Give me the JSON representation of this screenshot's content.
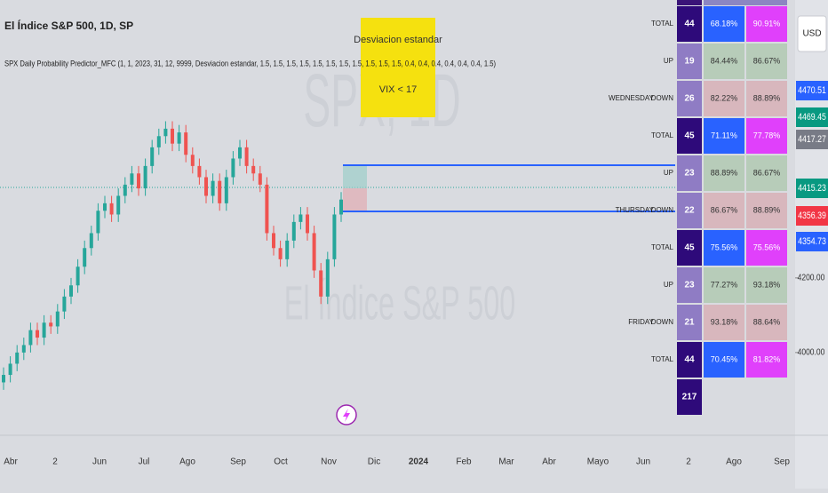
{
  "header": {
    "title": "El Índice S&P 500, 1D, SP",
    "indicator": "SPX Daily Probability Predictor_MFC (1, 1, 2023, 31, 12, 9999, Desviacion estandar, 1.5, 1.5, 1.5, 1.5, 1.5, 1.5, 1.5, 1.5, 1.5, 1.5, 1.5, 0.4, 0.4, 0.4, 0.4, 0.4, 0.4, 1.5)"
  },
  "annotation": {
    "lines": [
      "Desviacion estandar",
      "VIX < 17"
    ]
  },
  "watermark": {
    "symbol": "SPX, 1D",
    "name": "El Índice S&P 500"
  },
  "currency": "USD",
  "candles": {
    "up_color": "#26a69a",
    "down_color": "#ef5350",
    "ylim": [
      3802,
      4945
    ],
    "open": [
      3920,
      3940,
      3970,
      4000,
      4020,
      4060,
      4040,
      4080,
      4070,
      4110,
      4150,
      4180,
      4230,
      4280,
      4320,
      4380,
      4400,
      4370,
      4420,
      4450,
      4480,
      4440,
      4500,
      4550,
      4580,
      4600,
      4560,
      4590,
      4530,
      4500,
      4470,
      4420,
      4460,
      4400,
      4470,
      4520,
      4550,
      4500,
      4480,
      4450,
      4320,
      4280,
      4250,
      4300,
      4350,
      4370,
      4320,
      4220,
      4150,
      4250,
      4370
    ],
    "high": [
      3960,
      3990,
      4020,
      4040,
      4080,
      4080,
      4100,
      4100,
      4130,
      4170,
      4200,
      4250,
      4300,
      4340,
      4400,
      4420,
      4420,
      4440,
      4470,
      4500,
      4500,
      4520,
      4570,
      4600,
      4620,
      4620,
      4610,
      4610,
      4550,
      4520,
      4490,
      4480,
      4480,
      4490,
      4540,
      4570,
      4570,
      4520,
      4500,
      4470,
      4340,
      4300,
      4320,
      4370,
      4390,
      4390,
      4340,
      4240,
      4270,
      4390,
      4430
    ],
    "low": [
      3900,
      3920,
      3950,
      3980,
      4000,
      4020,
      4020,
      4050,
      4050,
      4090,
      4130,
      4160,
      4210,
      4260,
      4300,
      4360,
      4350,
      4350,
      4400,
      4430,
      4420,
      4420,
      4480,
      4530,
      4560,
      4540,
      4540,
      4510,
      4480,
      4450,
      4400,
      4400,
      4380,
      4380,
      4450,
      4500,
      4480,
      4460,
      4430,
      4300,
      4260,
      4230,
      4230,
      4280,
      4330,
      4300,
      4200,
      4130,
      4130,
      4230,
      4350
    ],
    "close": [
      3940,
      3970,
      4000,
      4020,
      4060,
      4040,
      4080,
      4070,
      4110,
      4150,
      4180,
      4230,
      4280,
      4320,
      4380,
      4400,
      4370,
      4420,
      4450,
      4480,
      4440,
      4500,
      4550,
      4580,
      4600,
      4560,
      4590,
      4530,
      4500,
      4470,
      4420,
      4460,
      4400,
      4470,
      4520,
      4550,
      4500,
      4480,
      4450,
      4320,
      4280,
      4250,
      4300,
      4350,
      4370,
      4320,
      4220,
      4150,
      4250,
      4370,
      4410
    ]
  },
  "price_axis": {
    "ticks": [
      {
        "value": 4200,
        "label": "4200.00"
      },
      {
        "value": 4000,
        "label": "4000.00"
      }
    ]
  },
  "price_tags": [
    {
      "label": "4470.51",
      "color": "#2962ff"
    },
    {
      "label": "4469.45",
      "color": "#089981"
    },
    {
      "label": "4417.27",
      "color": "#787b86"
    },
    {
      "label": "4415.23",
      "color": "#089981"
    },
    {
      "label": "4356.39",
      "color": "#f23645"
    },
    {
      "label": "4354.73",
      "color": "#2962ff"
    }
  ],
  "table": {
    "rows": [
      {
        "dir": "TOTAL",
        "count": "44",
        "up_pct": "68.18%",
        "down_pct": "90.91%"
      },
      {
        "dir": "UP",
        "count": "19",
        "up_pct": "84.44%",
        "down_pct": "86.67%"
      },
      {
        "day": "WEDNESDAY",
        "dir": "DOWN",
        "count": "26",
        "up_pct": "82.22%",
        "down_pct": "88.89%"
      },
      {
        "dir": "TOTAL",
        "count": "45",
        "up_pct": "71.11%",
        "down_pct": "77.78%"
      },
      {
        "dir": "UP",
        "count": "23",
        "up_pct": "88.89%",
        "down_pct": "86.67%"
      },
      {
        "day": "THURSDAY",
        "dir": "DOWN",
        "count": "22",
        "up_pct": "86.67%",
        "down_pct": "88.89%"
      },
      {
        "dir": "TOTAL",
        "count": "45",
        "up_pct": "75.56%",
        "down_pct": "75.56%"
      },
      {
        "dir": "UP",
        "count": "23",
        "up_pct": "77.27%",
        "down_pct": "93.18%"
      },
      {
        "day": "FRIDAY",
        "dir": "DOWN",
        "count": "21",
        "up_pct": "93.18%",
        "down_pct": "88.64%"
      },
      {
        "dir": "TOTAL",
        "count": "44",
        "up_pct": "70.45%",
        "down_pct": "81.82%"
      },
      {
        "count": "217"
      }
    ]
  },
  "x_axis": {
    "labels": [
      "Abr",
      "2",
      "Jun",
      "Jul",
      "Ago",
      "Sep",
      "Oct",
      "Nov",
      "Dic",
      "2024",
      "Feb",
      "Mar",
      "Abr",
      "Mayo",
      "Jun",
      "2",
      "Ago",
      "Sep"
    ]
  }
}
